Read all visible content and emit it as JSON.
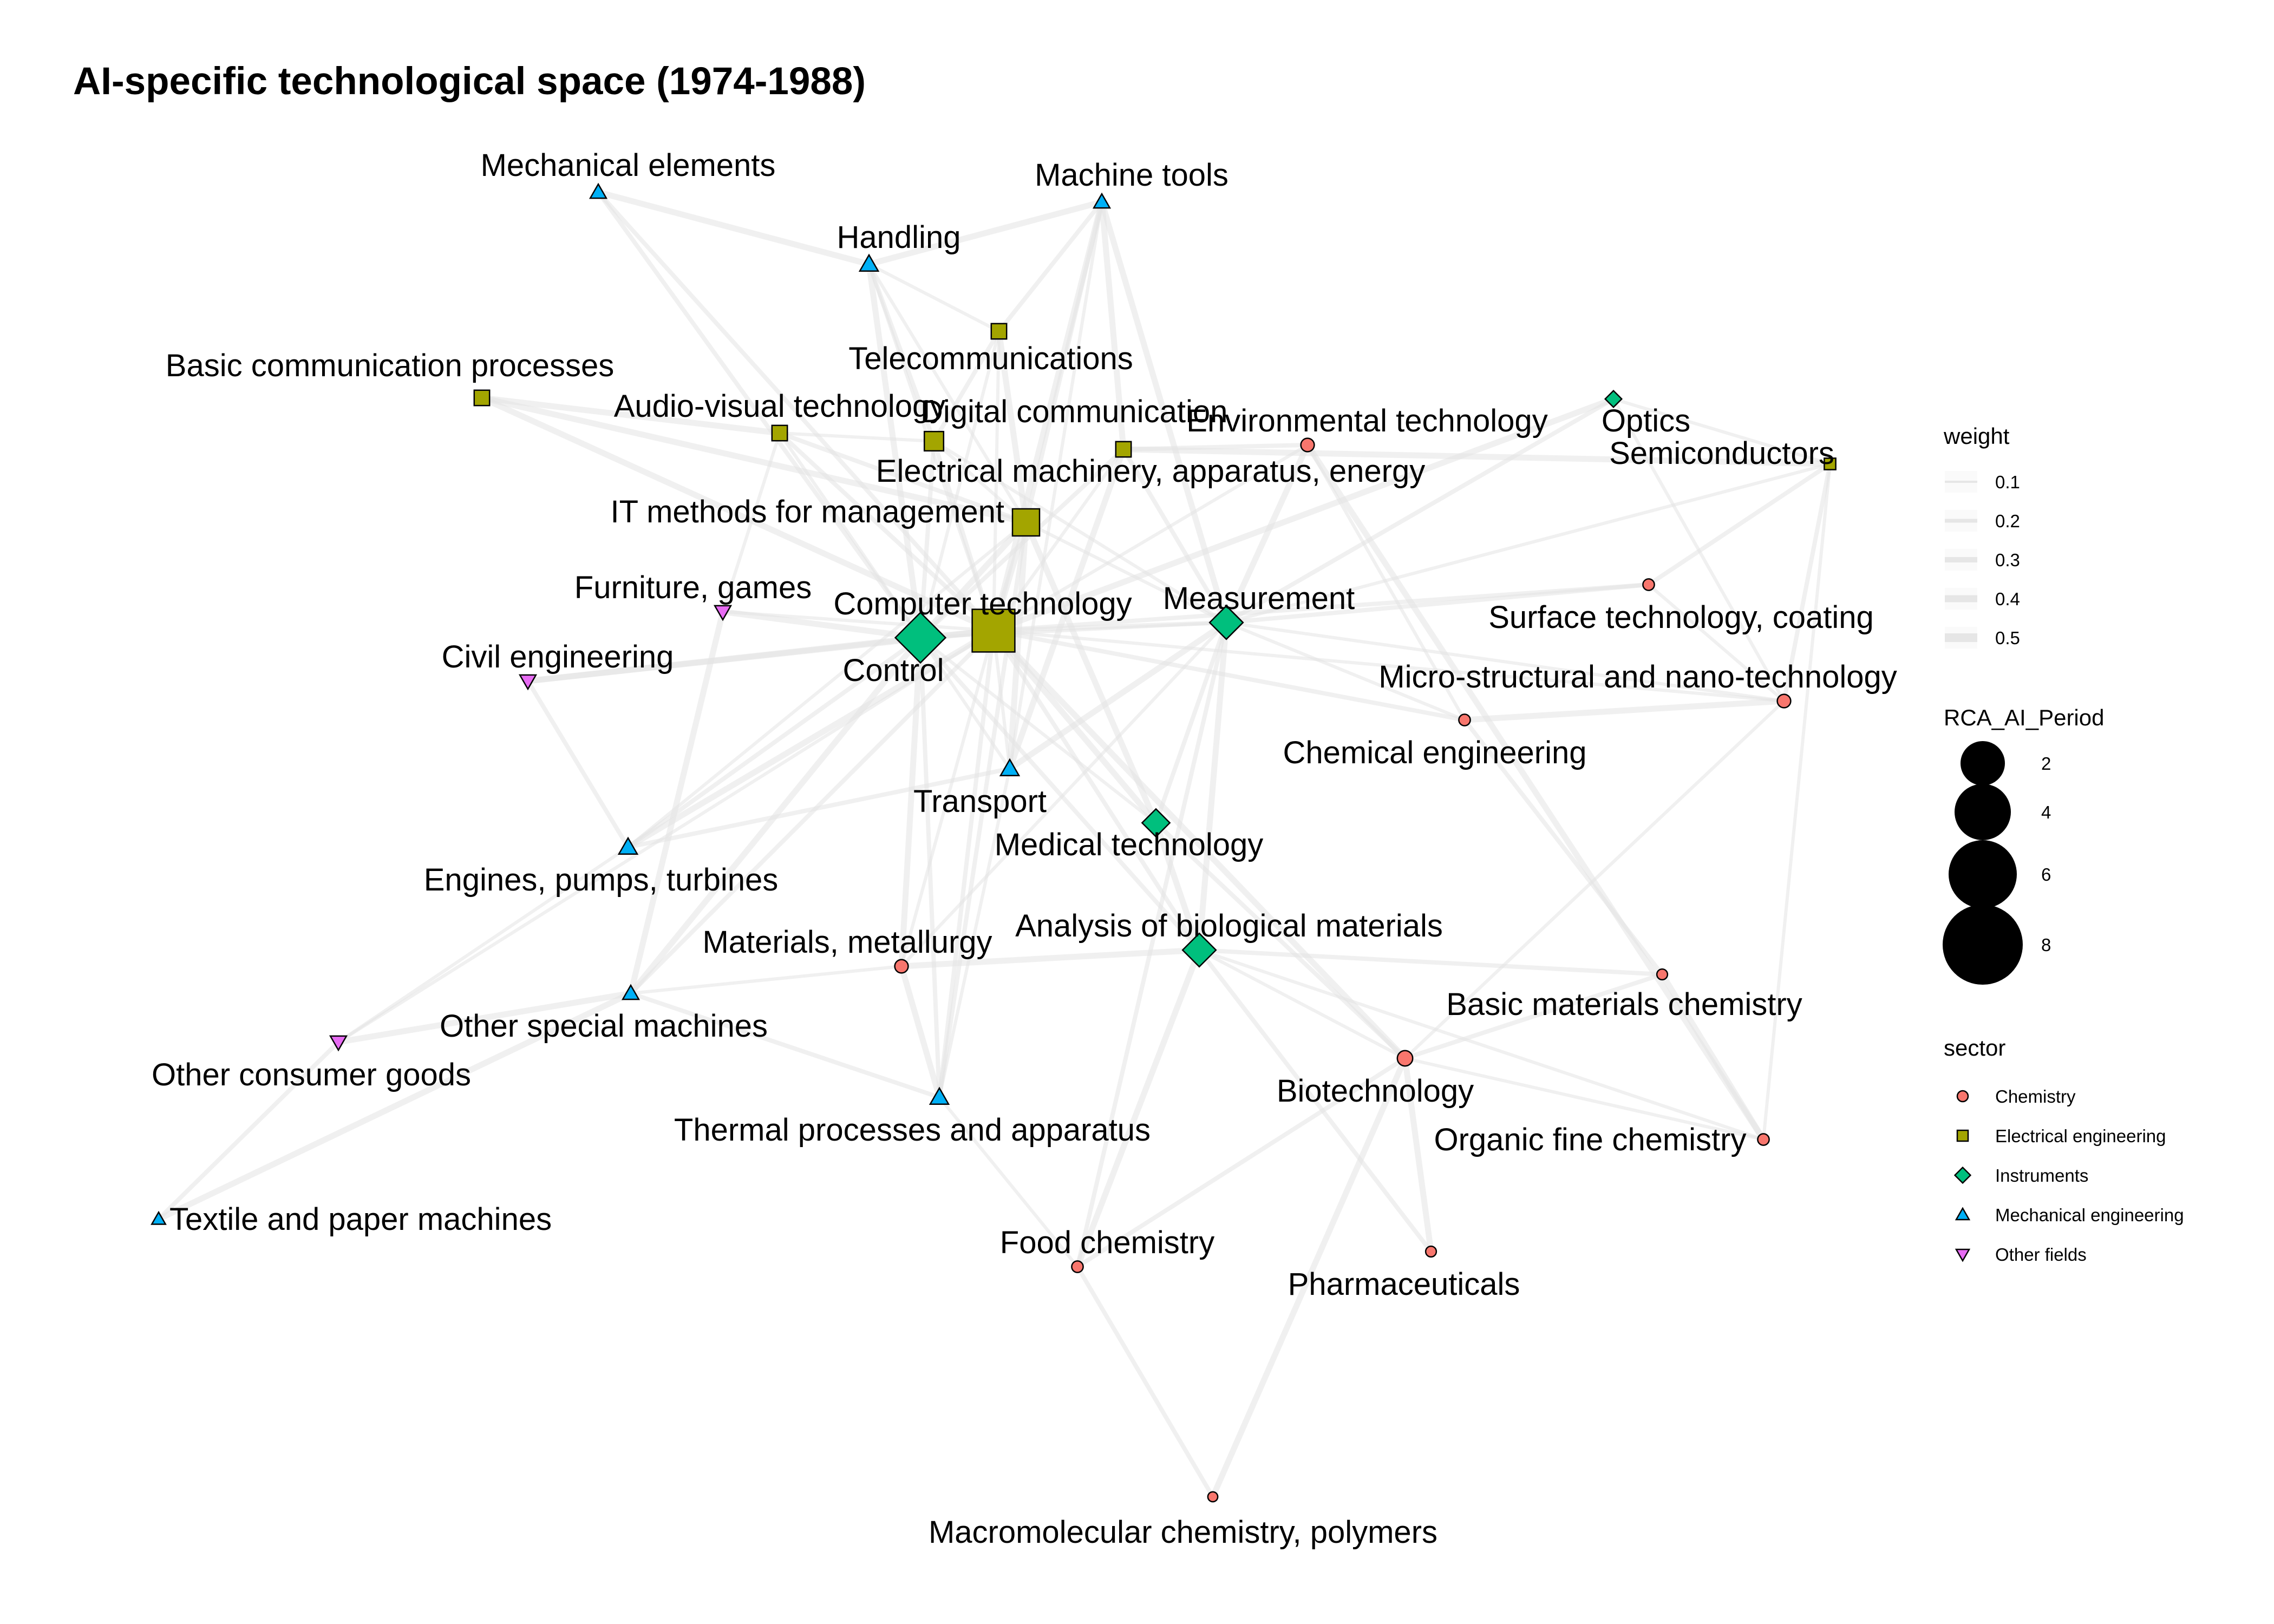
{
  "title": "AI-specific technological space (1974-1988)",
  "sector_colors": {
    "Chemistry": "#F8766D",
    "Electrical engineering": "#A3A500",
    "Instruments": "#00BF7D",
    "Mechanical engineering": "#00B0F6",
    "Other fields": "#E76BF3"
  },
  "sector_shapes": {
    "Chemistry": "circle",
    "Electrical engineering": "square",
    "Instruments": "diamond",
    "Mechanical engineering": "triangle-up",
    "Other fields": "triangle-down"
  },
  "nodes": [
    {
      "id": "computer",
      "label": "Computer technology",
      "sector": "Electrical engineering",
      "rca": 9
    },
    {
      "id": "it",
      "label": "IT methods for management",
      "sector": "Electrical engineering",
      "rca": 5
    },
    {
      "id": "digital",
      "label": "Digital communication",
      "sector": "Electrical engineering",
      "rca": 3
    },
    {
      "id": "telecom",
      "label": "Telecommunications",
      "sector": "Electrical engineering",
      "rca": 2
    },
    {
      "id": "basiccomm",
      "label": "Basic communication processes",
      "sector": "Electrical engineering",
      "rca": 2
    },
    {
      "id": "audiovisual",
      "label": "Audio-visual technology",
      "sector": "Electrical engineering",
      "rca": 2
    },
    {
      "id": "elecmach",
      "label": "Electrical machinery, apparatus, energy",
      "sector": "Electrical engineering",
      "rca": 2
    },
    {
      "id": "semiconductors",
      "label": "Semiconductors",
      "sector": "Electrical engineering",
      "rca": 1
    },
    {
      "id": "control",
      "label": "Control",
      "sector": "Instruments",
      "rca": 7
    },
    {
      "id": "measurement",
      "label": "Measurement",
      "sector": "Instruments",
      "rca": 4
    },
    {
      "id": "optics",
      "label": "Optics",
      "sector": "Instruments",
      "rca": 1
    },
    {
      "id": "medical",
      "label": "Medical technology",
      "sector": "Instruments",
      "rca": 3
    },
    {
      "id": "analysis",
      "label": "Analysis of biological materials",
      "sector": "Instruments",
      "rca": 4
    },
    {
      "id": "mechelem",
      "label": "Mechanical elements",
      "sector": "Mechanical engineering",
      "rca": 1.5
    },
    {
      "id": "machtools",
      "label": "Machine tools",
      "sector": "Mechanical engineering",
      "rca": 1.5
    },
    {
      "id": "handling",
      "label": "Handling",
      "sector": "Mechanical engineering",
      "rca": 2
    },
    {
      "id": "transport",
      "label": "Transport",
      "sector": "Mechanical engineering",
      "rca": 2
    },
    {
      "id": "engines",
      "label": "Engines, pumps, turbines",
      "sector": "Mechanical engineering",
      "rca": 2
    },
    {
      "id": "otherspecial",
      "label": "Other special machines",
      "sector": "Mechanical engineering",
      "rca": 1.5
    },
    {
      "id": "thermal",
      "label": "Thermal processes and apparatus",
      "sector": "Mechanical engineering",
      "rca": 2
    },
    {
      "id": "textile",
      "label": "Textile and paper machines",
      "sector": "Mechanical engineering",
      "rca": 1
    },
    {
      "id": "furniture",
      "label": "Furniture, games",
      "sector": "Other fields",
      "rca": 1.5
    },
    {
      "id": "civil",
      "label": "Civil engineering",
      "sector": "Other fields",
      "rca": 1.5
    },
    {
      "id": "otherconsumer",
      "label": "Other consumer goods",
      "sector": "Other fields",
      "rca": 1.5
    },
    {
      "id": "environmental",
      "label": "Environmental technology",
      "sector": "Chemistry",
      "rca": 1.5
    },
    {
      "id": "surface",
      "label": "Surface technology, coating",
      "sector": "Chemistry",
      "rca": 1
    },
    {
      "id": "micro",
      "label": "Micro-structural and nano-technology",
      "sector": "Chemistry",
      "rca": 1.5
    },
    {
      "id": "chemeng",
      "label": "Chemical engineering",
      "sector": "Chemistry",
      "rca": 1
    },
    {
      "id": "materials",
      "label": "Materials, metallurgy",
      "sector": "Chemistry",
      "rca": 1.5
    },
    {
      "id": "basicmat",
      "label": "Basic materials chemistry",
      "sector": "Chemistry",
      "rca": 0.8
    },
    {
      "id": "biotech",
      "label": "Biotechnology",
      "sector": "Chemistry",
      "rca": 2
    },
    {
      "id": "organic",
      "label": "Organic fine chemistry",
      "sector": "Chemistry",
      "rca": 1
    },
    {
      "id": "food",
      "label": "Food chemistry",
      "sector": "Chemistry",
      "rca": 1
    },
    {
      "id": "pharma",
      "label": "Pharmaceuticals",
      "sector": "Chemistry",
      "rca": 0.8
    },
    {
      "id": "macro",
      "label": "Macromolecular chemistry, polymers",
      "sector": "Chemistry",
      "rca": 0.6
    }
  ],
  "edges": [
    [
      "computer",
      "it"
    ],
    [
      "computer",
      "digital"
    ],
    [
      "computer",
      "telecom"
    ],
    [
      "computer",
      "basiccomm"
    ],
    [
      "computer",
      "audiovisual"
    ],
    [
      "computer",
      "elecmach"
    ],
    [
      "computer",
      "control"
    ],
    [
      "computer",
      "measurement"
    ],
    [
      "computer",
      "handling"
    ],
    [
      "computer",
      "machtools"
    ],
    [
      "computer",
      "mechelem"
    ],
    [
      "computer",
      "transport"
    ],
    [
      "computer",
      "engines"
    ],
    [
      "computer",
      "thermal"
    ],
    [
      "computer",
      "materials"
    ],
    [
      "computer",
      "medical"
    ],
    [
      "computer",
      "analysis"
    ],
    [
      "computer",
      "furniture"
    ],
    [
      "computer",
      "civil"
    ],
    [
      "computer",
      "otherspecial"
    ],
    [
      "computer",
      "environmental"
    ],
    [
      "computer",
      "optics"
    ],
    [
      "computer",
      "chemeng"
    ],
    [
      "computer",
      "micro"
    ],
    [
      "computer",
      "biotech"
    ],
    [
      "computer",
      "surface"
    ],
    [
      "computer",
      "otherconsumer"
    ],
    [
      "control",
      "it"
    ],
    [
      "control",
      "digital"
    ],
    [
      "control",
      "audiovisual"
    ],
    [
      "control",
      "handling"
    ],
    [
      "control",
      "mechelem"
    ],
    [
      "control",
      "measurement"
    ],
    [
      "control",
      "civil"
    ],
    [
      "control",
      "engines"
    ],
    [
      "control",
      "transport"
    ],
    [
      "control",
      "materials"
    ],
    [
      "control",
      "thermal"
    ],
    [
      "control",
      "medical"
    ],
    [
      "control",
      "furniture"
    ],
    [
      "control",
      "elecmach"
    ],
    [
      "control",
      "telecom"
    ],
    [
      "control",
      "otherspecial"
    ],
    [
      "control",
      "analysis"
    ],
    [
      "it",
      "digital"
    ],
    [
      "it",
      "telecom"
    ],
    [
      "it",
      "audiovisual"
    ],
    [
      "it",
      "measurement"
    ],
    [
      "it",
      "basiccomm"
    ],
    [
      "it",
      "machtools"
    ],
    [
      "it",
      "handling"
    ],
    [
      "it",
      "transport"
    ],
    [
      "it",
      "thermal"
    ],
    [
      "it",
      "engines"
    ],
    [
      "it",
      "medical"
    ],
    [
      "measurement",
      "optics"
    ],
    [
      "measurement",
      "semiconductors"
    ],
    [
      "measurement",
      "environmental"
    ],
    [
      "measurement",
      "surface"
    ],
    [
      "measurement",
      "micro"
    ],
    [
      "measurement",
      "analysis"
    ],
    [
      "measurement",
      "medical"
    ],
    [
      "measurement",
      "chemeng"
    ],
    [
      "measurement",
      "transport"
    ],
    [
      "measurement",
      "elecmach"
    ],
    [
      "measurement",
      "digital"
    ],
    [
      "measurement",
      "machtools"
    ],
    [
      "measurement",
      "food"
    ],
    [
      "measurement",
      "materials"
    ],
    [
      "medical",
      "analysis"
    ],
    [
      "medical",
      "biotech"
    ],
    [
      "analysis",
      "biotech"
    ],
    [
      "analysis",
      "materials"
    ],
    [
      "analysis",
      "pharma"
    ],
    [
      "analysis",
      "organic"
    ],
    [
      "analysis",
      "food"
    ],
    [
      "analysis",
      "basicmat"
    ],
    [
      "biotech",
      "organic"
    ],
    [
      "biotech",
      "pharma"
    ],
    [
      "biotech",
      "food"
    ],
    [
      "biotech",
      "micro"
    ],
    [
      "biotech",
      "macro"
    ],
    [
      "biotech",
      "basicmat"
    ],
    [
      "micro",
      "surface"
    ],
    [
      "micro",
      "chemeng"
    ],
    [
      "micro",
      "semiconductors"
    ],
    [
      "semiconductors",
      "optics"
    ],
    [
      "semiconductors",
      "elecmach"
    ],
    [
      "semiconductors",
      "surface"
    ],
    [
      "semiconductors",
      "organic"
    ],
    [
      "basicmat",
      "organic"
    ],
    [
      "basicmat",
      "chemeng"
    ],
    [
      "chemeng",
      "environmental"
    ],
    [
      "environmental",
      "organic"
    ],
    [
      "food",
      "macro"
    ],
    [
      "food",
      "thermal"
    ],
    [
      "thermal",
      "materials"
    ],
    [
      "thermal",
      "otherspecial"
    ],
    [
      "materials",
      "otherspecial"
    ],
    [
      "otherspecial",
      "otherconsumer"
    ],
    [
      "otherconsumer",
      "textile"
    ],
    [
      "otherconsumer",
      "engines"
    ],
    [
      "textile",
      "otherspecial"
    ],
    [
      "civil",
      "engines"
    ],
    [
      "furniture",
      "audiovisual"
    ],
    [
      "handling",
      "machtools"
    ],
    [
      "handling",
      "digital"
    ],
    [
      "handling",
      "telecom"
    ],
    [
      "mechelem",
      "handling"
    ],
    [
      "machtools",
      "telecom"
    ],
    [
      "machtools",
      "transport"
    ],
    [
      "machtools",
      "elecmach"
    ],
    [
      "digital",
      "telecom"
    ],
    [
      "digital",
      "audiovisual"
    ],
    [
      "audiovisual",
      "basiccomm"
    ],
    [
      "transport",
      "engines"
    ],
    [
      "transport",
      "thermal"
    ],
    [
      "elecmach",
      "transport"
    ],
    [
      "elecmach",
      "environmental"
    ],
    [
      "optics",
      "micro"
    ],
    [
      "furniture",
      "otherspecial"
    ]
  ],
  "legend": {
    "weight_title": "weight",
    "weight_values": [
      "0.1",
      "0.2",
      "0.3",
      "0.4",
      "0.5"
    ],
    "size_title": "RCA_AI_Period",
    "size_values": [
      2,
      4,
      6,
      8
    ],
    "size_labels": [
      "2",
      "4",
      "6",
      "8"
    ],
    "sector_title": "sector",
    "sectors": [
      "Chemistry",
      "Electrical engineering",
      "Instruments",
      "Mechanical engineering",
      "Other fields"
    ]
  }
}
